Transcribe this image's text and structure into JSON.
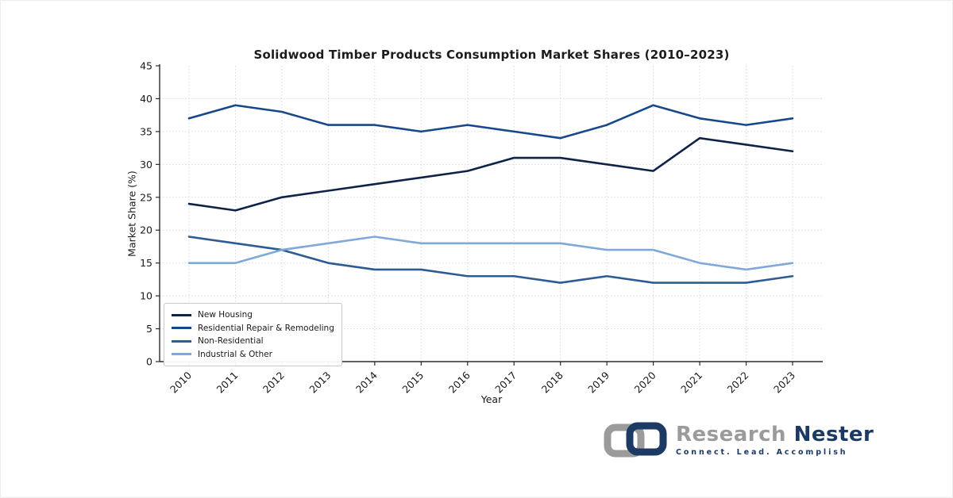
{
  "canvas": {
    "background": "#ffffff",
    "border_color": "#ededed"
  },
  "chart_data": {
    "type": "line",
    "title": "Solidwood Timber Products Consumption Market Shares (2010–2023)",
    "xlabel": "Year",
    "ylabel": "Market Share (%)",
    "x": [
      "2010",
      "2011",
      "2012",
      "2013",
      "2014",
      "2015",
      "2016",
      "2017",
      "2018",
      "2019",
      "2020",
      "2021",
      "2022",
      "2023"
    ],
    "ylim": [
      0,
      45
    ],
    "yticks": [
      0,
      5,
      10,
      15,
      20,
      25,
      30,
      35,
      40,
      45
    ],
    "grid": true,
    "legend_position": "lower-left",
    "series": [
      {
        "name": "New Housing",
        "color": "#0e2347",
        "values": [
          24,
          23,
          25,
          26,
          27,
          28,
          29,
          31,
          31,
          30,
          29,
          34,
          33,
          32
        ]
      },
      {
        "name": "Residential Repair & Remodeling",
        "color": "#17488c",
        "values": [
          37,
          39,
          38,
          36,
          36,
          35,
          36,
          35,
          34,
          36,
          39,
          37,
          36,
          37
        ]
      },
      {
        "name": "Non-Residential",
        "color": "#2d5b94",
        "values": [
          19,
          18,
          17,
          15,
          14,
          14,
          13,
          13,
          12,
          13,
          12,
          12,
          12,
          13
        ]
      },
      {
        "name": "Industrial & Other",
        "color": "#7ea9d8",
        "values": [
          15,
          15,
          17,
          18,
          19,
          18,
          18,
          18,
          18,
          17,
          17,
          15,
          14,
          15
        ]
      }
    ],
    "axis_color": "#2b2b2b",
    "grid_color": "#dadada",
    "tick_label_color": "#1a1a1a"
  },
  "branding": {
    "name_primary": "Research",
    "name_secondary": "Nester",
    "tagline": "Connect. Lead. Accomplish",
    "primary_color": "#9b9b9b",
    "secondary_color": "#1c3a63"
  }
}
